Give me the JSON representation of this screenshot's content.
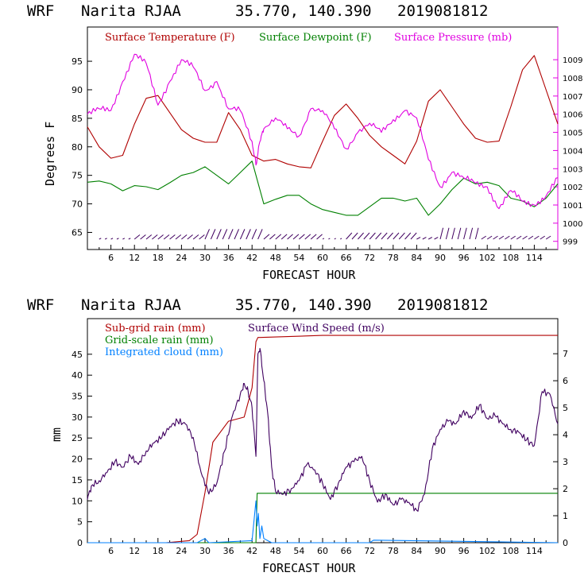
{
  "chart_data": [
    {
      "type": "line",
      "header": {
        "model": "WRF",
        "station": "Narita RJAA",
        "coords": "35.770, 140.390",
        "init": "2019081812"
      },
      "xlabel": "FORECAST HOUR",
      "ylabel": "Degrees F",
      "xlim": [
        0,
        120
      ],
      "ylim": [
        62,
        101
      ],
      "y2lim": [
        998.55,
        1010.8
      ],
      "x_ticks": [
        "6",
        "12",
        "18",
        "24",
        "30",
        "36",
        "42",
        "48",
        "54",
        "60",
        "66",
        "72",
        "78",
        "84",
        "90",
        "96",
        "102",
        "108",
        "114"
      ],
      "y_ticks": [
        "65",
        "70",
        "75",
        "80",
        "85",
        "90",
        "95"
      ],
      "y2_ticks": [
        "999",
        "1000",
        "1001",
        "1002",
        "1003",
        "1004",
        "1005",
        "1006",
        "1007",
        "1008",
        "1009"
      ],
      "colors": {
        "temp": "#b00000",
        "dew": "#008000",
        "pres": "#e000e0"
      },
      "series": [
        {
          "name": "Surface Temperature (F)",
          "key": "temp",
          "axis": "left",
          "x": [
            0,
            3,
            6,
            9,
            12,
            15,
            18,
            21,
            24,
            27,
            30,
            33,
            36,
            39,
            42,
            45,
            48,
            51,
            54,
            57,
            60,
            63,
            66,
            69,
            72,
            75,
            78,
            81,
            84,
            87,
            90,
            93,
            96,
            99,
            102,
            105,
            108,
            111,
            114,
            117,
            120
          ],
          "values": [
            83.5,
            80,
            78,
            78.5,
            84,
            88.5,
            89,
            86,
            83,
            81.5,
            80.8,
            80.8,
            86,
            83,
            78.5,
            77.5,
            77.8,
            77,
            76.5,
            76.3,
            81,
            85.5,
            87.5,
            85,
            82,
            80,
            78.5,
            77,
            81,
            88,
            90,
            87,
            84,
            81.5,
            80.8,
            81,
            87,
            93.5,
            96,
            90,
            84
          ]
        },
        {
          "name": "Surface Dewpoint (F)",
          "key": "dew",
          "axis": "left",
          "x": [
            0,
            3,
            6,
            9,
            12,
            15,
            18,
            21,
            24,
            27,
            30,
            33,
            36,
            39,
            42,
            45,
            48,
            51,
            54,
            57,
            60,
            63,
            66,
            69,
            72,
            75,
            78,
            81,
            84,
            87,
            90,
            93,
            96,
            99,
            102,
            105,
            108,
            111,
            114,
            117,
            120
          ],
          "values": [
            73.8,
            74,
            73.5,
            72.3,
            73.2,
            73,
            72.5,
            73.7,
            75,
            75.5,
            76.5,
            75,
            73.5,
            75.5,
            77.5,
            70,
            70.8,
            71.5,
            71.5,
            70,
            69,
            68.5,
            68,
            68,
            69.5,
            71,
            71,
            70.5,
            71,
            68,
            70,
            72.5,
            74.5,
            73.5,
            73.8,
            73.2,
            71,
            70.5,
            69.5,
            71,
            73.5
          ]
        },
        {
          "name": "Surface Pressure (mb)",
          "key": "pres",
          "axis": "right",
          "x": [
            0,
            3,
            6,
            9,
            12,
            15,
            18,
            21,
            24,
            27,
            30,
            33,
            36,
            39,
            42,
            43,
            44,
            45,
            48,
            51,
            54,
            57,
            60,
            63,
            66,
            69,
            72,
            75,
            78,
            81,
            84,
            87,
            90,
            93,
            96,
            99,
            102,
            105,
            108,
            111,
            114,
            117,
            120
          ],
          "values": [
            1006,
            1006.3,
            1006.2,
            1007.8,
            1009.3,
            1008.8,
            1006.5,
            1007.8,
            1009,
            1008.6,
            1007.3,
            1007.8,
            1006.3,
            1006.2,
            1004.5,
            1003.2,
            1004.5,
            1005.2,
            1005.8,
            1005.2,
            1004.8,
            1006.3,
            1006.2,
            1005.2,
            1004.1,
            1005,
            1005.5,
            1005,
            1005.7,
            1006.2,
            1005.8,
            1003.5,
            1002,
            1002.8,
            1002.5,
            1002.2,
            1002,
            1000.8,
            1001.8,
            1001.2,
            1001,
            1001.5,
            1002.5
          ]
        }
      ],
      "wind_barbs": "row of wind barbs along bottom of panel"
    },
    {
      "type": "line",
      "header": {
        "model": "WRF",
        "station": "Narita RJAA",
        "coords": "35.770, 140.390",
        "init": "2019081812"
      },
      "xlabel": "FORECAST HOUR",
      "ylabel": "mm",
      "xlim": [
        0,
        120
      ],
      "ylim": [
        0,
        53.5
      ],
      "y2lim": [
        0,
        8.3
      ],
      "x_ticks": [
        "6",
        "12",
        "18",
        "24",
        "30",
        "36",
        "42",
        "48",
        "54",
        "60",
        "66",
        "72",
        "78",
        "84",
        "90",
        "96",
        "102",
        "108",
        "114"
      ],
      "y_ticks": [
        "0",
        "5",
        "10",
        "15",
        "20",
        "25",
        "30",
        "35",
        "40",
        "45"
      ],
      "y2_ticks": [
        "0",
        "1",
        "2",
        "3",
        "4",
        "5",
        "6",
        "7"
      ],
      "colors": {
        "subgrid": "#b00000",
        "grid": "#008000",
        "cloud": "#0080ff",
        "wind": "#400060"
      },
      "series": [
        {
          "name": "Sub-grid rain (mm)",
          "key": "subgrid",
          "axis": "left",
          "x": [
            0,
            20,
            26,
            28,
            30,
            32,
            36,
            38,
            40,
            42,
            43,
            43.5,
            44,
            60,
            120
          ],
          "values": [
            0,
            0,
            0.5,
            2,
            12,
            24,
            29,
            29.5,
            30,
            37,
            48,
            49,
            49,
            49.5,
            49.5
          ]
        },
        {
          "name": "Grid-scale rain (mm)",
          "key": "grid",
          "axis": "left",
          "x": [
            0,
            43,
            43.3,
            120
          ],
          "values": [
            0,
            0,
            11.8,
            11.8
          ]
        },
        {
          "name": "Integrated cloud (mm)",
          "key": "cloud",
          "axis": "left",
          "x": [
            0,
            28,
            30,
            31,
            42,
            43,
            43.3,
            43.6,
            44,
            44.5,
            45,
            46,
            47,
            48,
            72,
            73,
            120
          ],
          "values": [
            0,
            0,
            1,
            0,
            0.5,
            10,
            4,
            7,
            1,
            4,
            1,
            0.5,
            0,
            0,
            0,
            0.6,
            0
          ]
        },
        {
          "name": "Surface Wind Speed (m/s)",
          "key": "wind",
          "axis": "right",
          "x": [
            0,
            1,
            3,
            5,
            7,
            9,
            11,
            13,
            15,
            17,
            19,
            21,
            23,
            25,
            27,
            29,
            31,
            33,
            35,
            37,
            39,
            40,
            41,
            42,
            43,
            43.5,
            44,
            45,
            46,
            47,
            48,
            50,
            52,
            54,
            56,
            58,
            60,
            62,
            64,
            66,
            68,
            70,
            72,
            74,
            76,
            78,
            80,
            82,
            84,
            86,
            88,
            90,
            92,
            94,
            96,
            98,
            100,
            102,
            104,
            106,
            108,
            110,
            112,
            114,
            116,
            118,
            120
          ],
          "values": [
            1.6,
            2.1,
            2.3,
            2.6,
            3,
            2.8,
            3.2,
            2.9,
            3.4,
            3.7,
            3.9,
            4.3,
            4.5,
            4.4,
            3.9,
            2.6,
            1.8,
            2.2,
            3.4,
            4.7,
            5.5,
            5.9,
            5.6,
            5,
            3.2,
            7.0,
            7.2,
            6,
            4.8,
            2.8,
            1.9,
            1.8,
            2,
            2.3,
            2.9,
            2.7,
            2.2,
            1.6,
            2.2,
            2.8,
            3,
            3.2,
            2.3,
            1.5,
            1.8,
            1.4,
            1.6,
            1.5,
            1.2,
            1.8,
            3.5,
            4.2,
            4.5,
            4.4,
            4.9,
            4.6,
            5.1,
            4.6,
            4.7,
            4.4,
            4.2,
            4.1,
            3.8,
            3.6,
            5.6,
            5.5,
            4.4
          ]
        }
      ]
    }
  ]
}
